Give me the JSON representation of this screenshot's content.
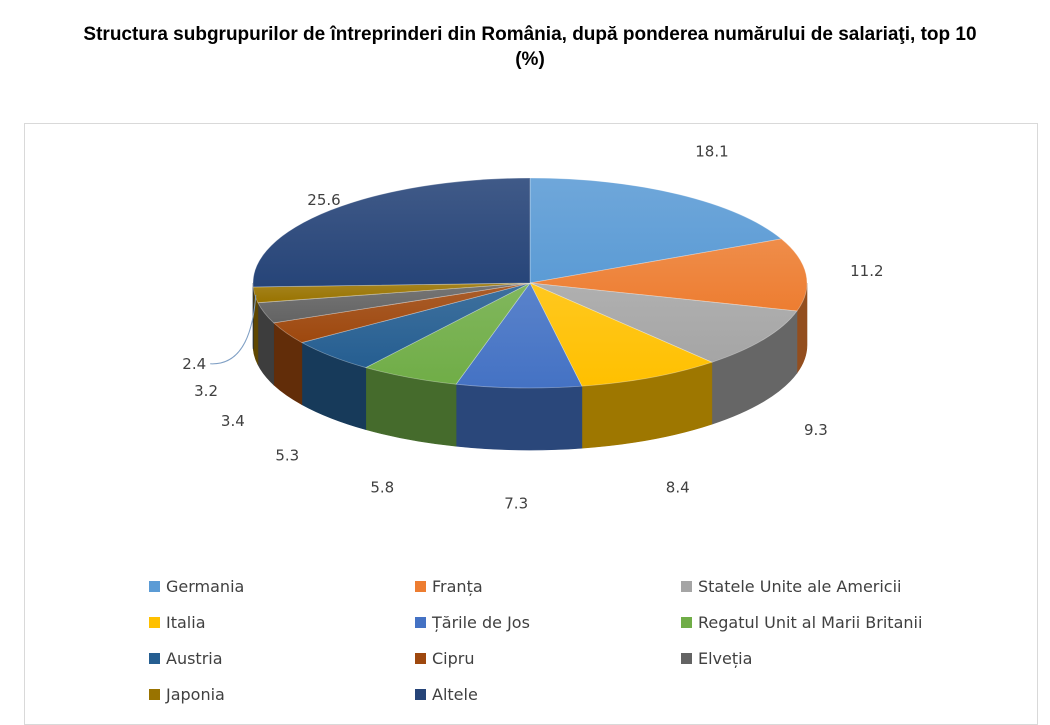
{
  "title_line1": "Structura subgrupurilor de întreprinderi din România, după ponderea numărului de salariaţi, top 10",
  "title_line2": "(%)",
  "chart_data": {
    "type": "pie",
    "style": "3d-pie",
    "legend_position": "bottom",
    "categories": [
      "Germania",
      "Franța",
      "Statele Unite ale Americii",
      "Italia",
      "Țările de Jos",
      "Regatul Unit al Marii Britanii",
      "Austria",
      "Cipru",
      "Elveția",
      "Japonia",
      "Altele"
    ],
    "values": [
      18.1,
      11.2,
      9.3,
      8.4,
      7.3,
      5.8,
      5.3,
      3.4,
      3.2,
      2.4,
      25.6
    ],
    "data_labels": [
      "18.1",
      "11.2",
      "9.3",
      "8.4",
      "7.3",
      "5.8",
      "5.3",
      "3.4",
      "3.2",
      "2.4",
      "25.6"
    ],
    "colors": [
      "#5b9bd5",
      "#ed7d31",
      "#a5a5a5",
      "#ffc000",
      "#4472c4",
      "#70ad47",
      "#255e91",
      "#9e480e",
      "#636363",
      "#997300",
      "#264478"
    ]
  }
}
